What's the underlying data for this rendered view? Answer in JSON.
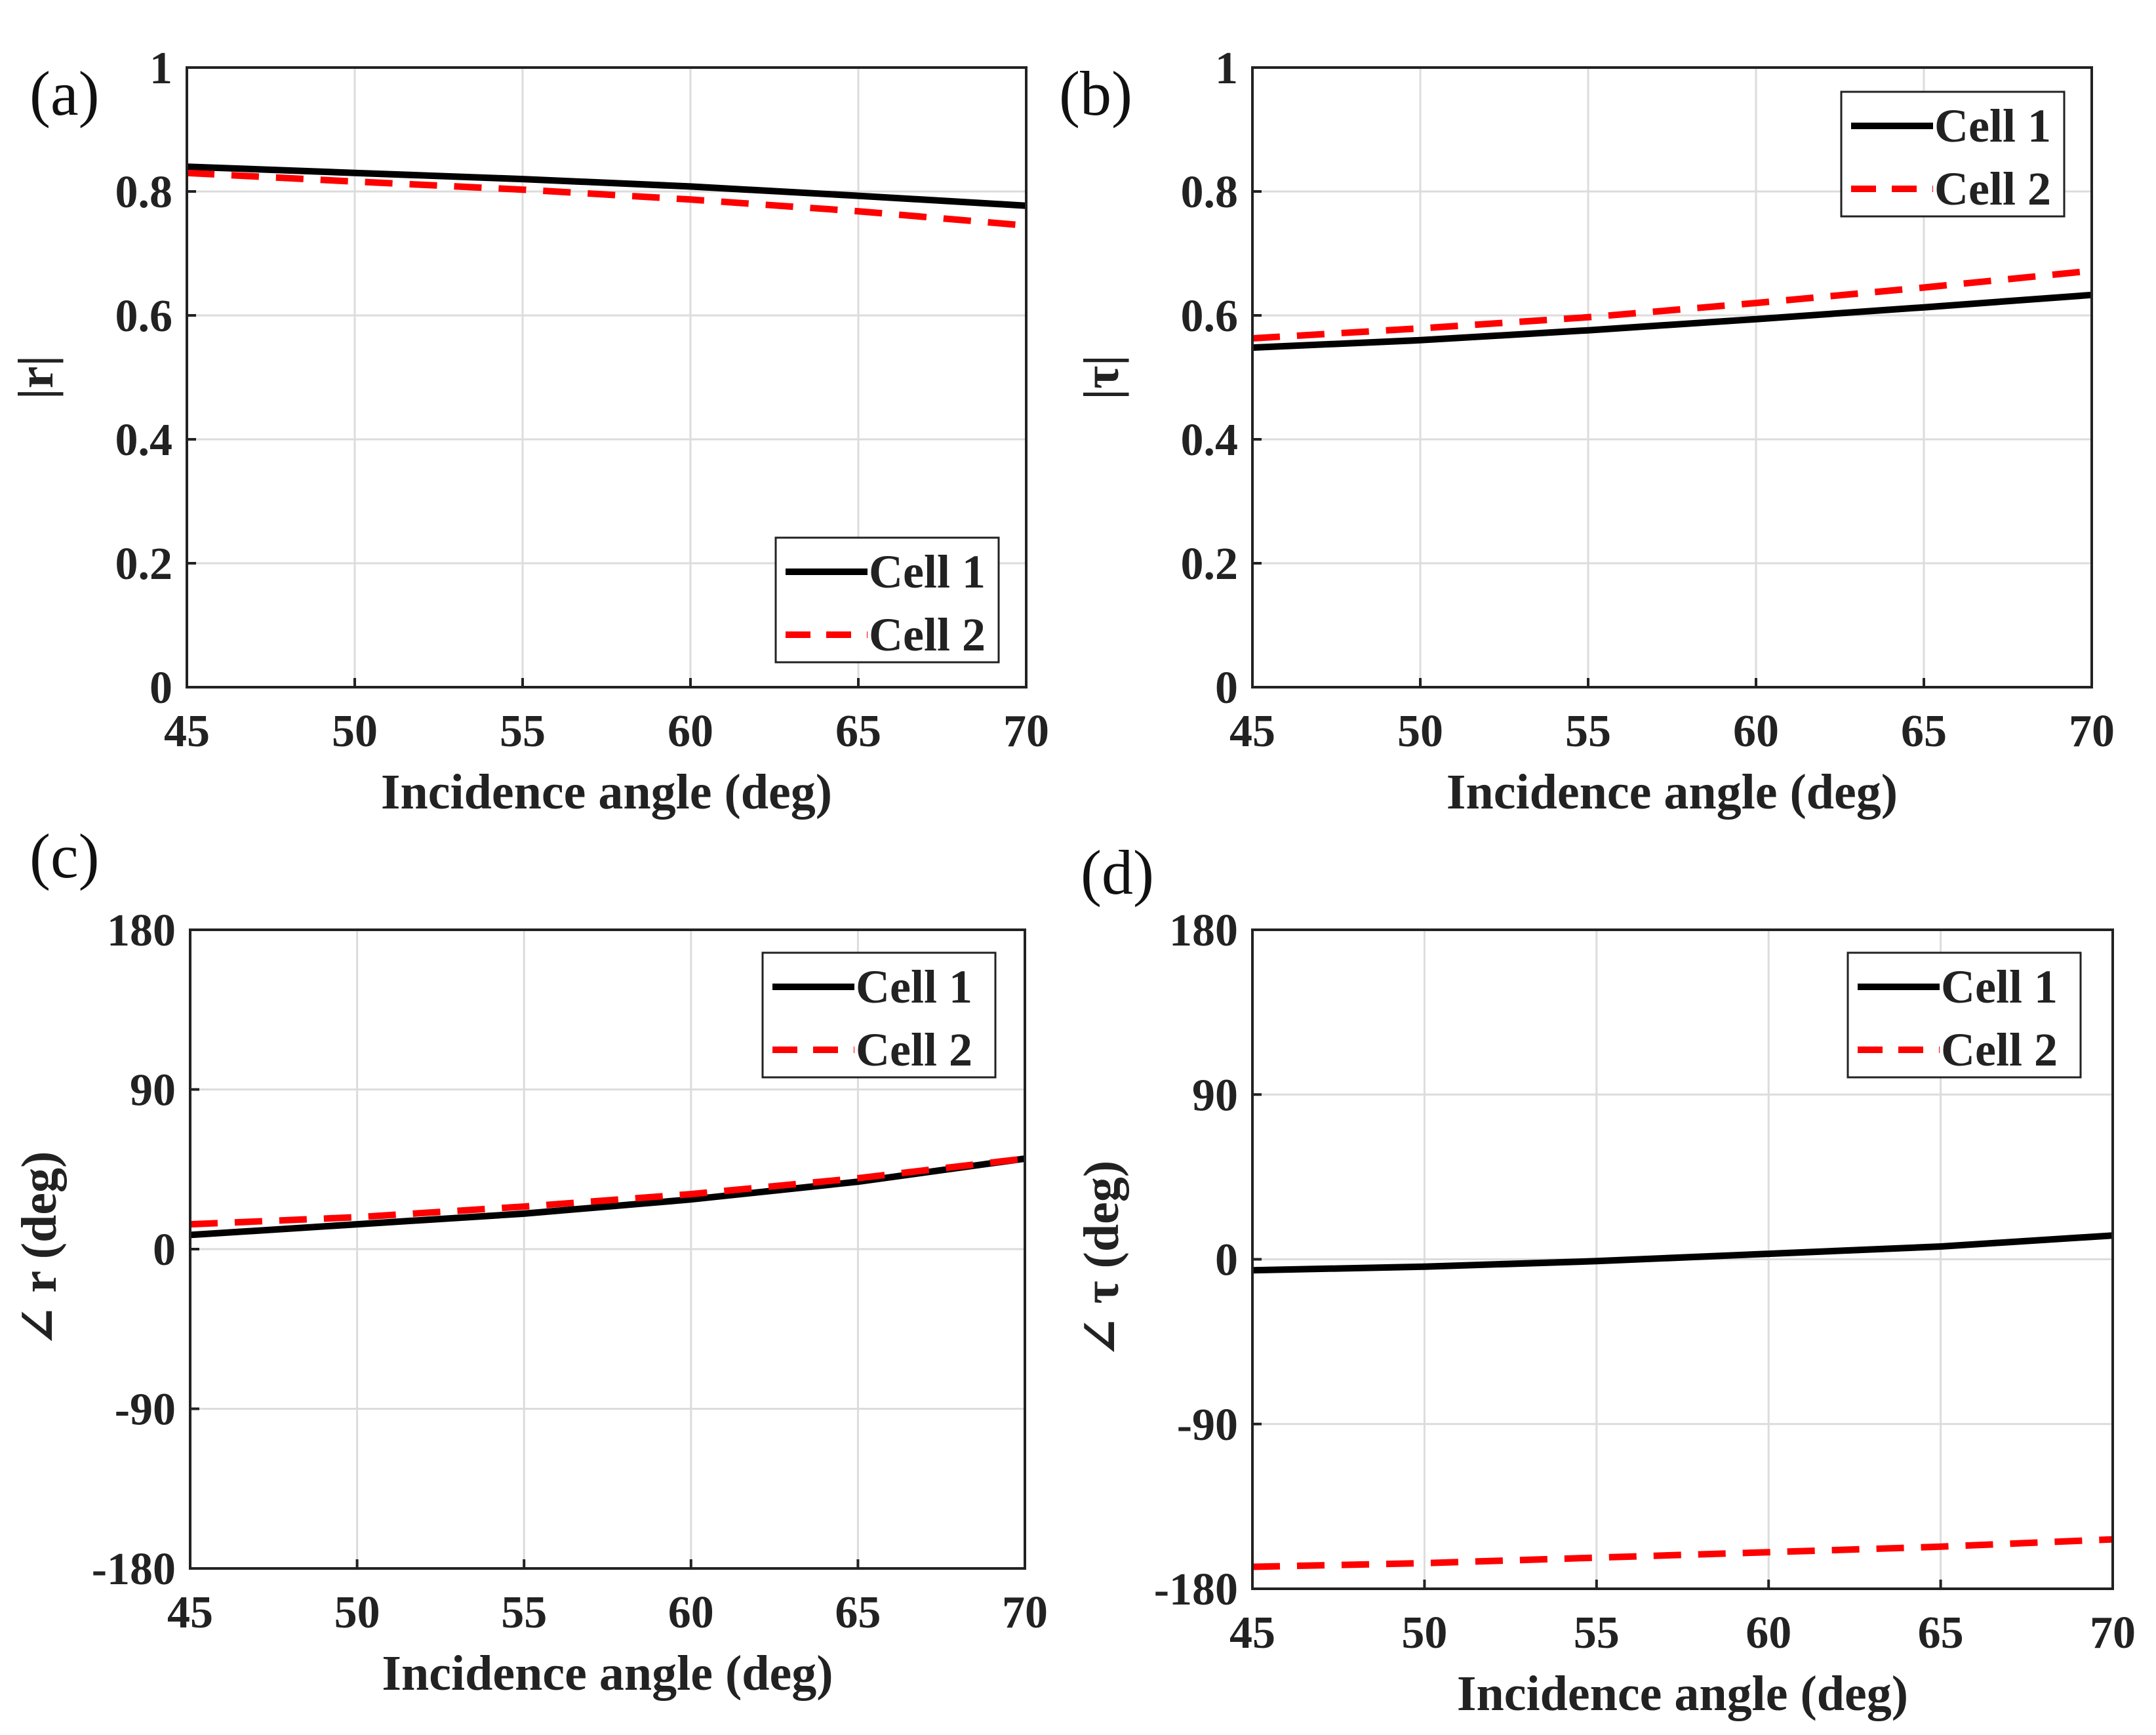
{
  "chart_data": [
    {
      "id": "a",
      "panel_label": "(a)",
      "type": "line",
      "xlabel": "Incidence angle (deg)",
      "ylabel": "|r|",
      "xlim": [
        45,
        70
      ],
      "ylim": [
        0,
        1
      ],
      "xticks": [
        "45",
        "50",
        "55",
        "60",
        "65",
        "70"
      ],
      "yticks": [
        "0",
        "0.2",
        "0.4",
        "0.6",
        "0.8",
        "1"
      ],
      "grid": true,
      "legend_position": "bottom-right",
      "x": [
        45,
        50,
        55,
        60,
        65,
        70
      ],
      "series": [
        {
          "name": "Cell 1",
          "color": "#000000",
          "style": "solid",
          "values": [
            0.84,
            0.83,
            0.82,
            0.808,
            0.793,
            0.777
          ]
        },
        {
          "name": "Cell 2",
          "color": "#ff0000",
          "style": "dashed",
          "values": [
            0.83,
            0.816,
            0.803,
            0.787,
            0.768,
            0.745
          ]
        }
      ]
    },
    {
      "id": "b",
      "panel_label": "(b)",
      "type": "line",
      "xlabel": "Incidence angle (deg)",
      "ylabel": "|τ|",
      "xlim": [
        45,
        70
      ],
      "ylim": [
        0,
        1
      ],
      "xticks": [
        "45",
        "50",
        "55",
        "60",
        "65",
        "70"
      ],
      "yticks": [
        "0",
        "0.2",
        "0.4",
        "0.6",
        "0.8",
        "1"
      ],
      "grid": true,
      "legend_position": "top-right",
      "x": [
        45,
        50,
        55,
        60,
        65,
        70
      ],
      "series": [
        {
          "name": "Cell 1",
          "color": "#000000",
          "style": "solid",
          "values": [
            0.548,
            0.56,
            0.576,
            0.594,
            0.613,
            0.633
          ]
        },
        {
          "name": "Cell 2",
          "color": "#ff0000",
          "style": "dashed",
          "values": [
            0.563,
            0.579,
            0.597,
            0.62,
            0.645,
            0.672
          ]
        }
      ]
    },
    {
      "id": "c",
      "panel_label": "(c)",
      "type": "line",
      "xlabel": "Incidence angle (deg)",
      "ylabel": "∠ r (deg)",
      "xlim": [
        45,
        70
      ],
      "ylim": [
        -180,
        180
      ],
      "xticks": [
        "45",
        "50",
        "55",
        "60",
        "65",
        "70"
      ],
      "yticks": [
        "-180",
        "-90",
        "0",
        "90",
        "180"
      ],
      "grid": true,
      "legend_position": "top-right",
      "x": [
        45,
        50,
        55,
        60,
        65,
        70
      ],
      "series": [
        {
          "name": "Cell 1",
          "color": "#000000",
          "style": "solid",
          "values": [
            8,
            14,
            20,
            28,
            38,
            51
          ]
        },
        {
          "name": "Cell 2",
          "color": "#ff0000",
          "style": "dashed",
          "values": [
            14,
            18,
            24,
            31,
            40,
            51
          ]
        }
      ]
    },
    {
      "id": "d",
      "panel_label": "(d)",
      "type": "line",
      "xlabel": "Incidence angle (deg)",
      "ylabel": "∠ τ (deg)",
      "xlim": [
        45,
        70
      ],
      "ylim": [
        -180,
        180
      ],
      "xticks": [
        "45",
        "50",
        "55",
        "60",
        "65",
        "70"
      ],
      "yticks": [
        "-180",
        "-90",
        "0",
        "90",
        "180"
      ],
      "grid": true,
      "legend_position": "top-right",
      "x": [
        45,
        50,
        55,
        60,
        65,
        70
      ],
      "series": [
        {
          "name": "Cell 1",
          "color": "#000000",
          "style": "solid",
          "values": [
            -6,
            -4,
            -1,
            3,
            7,
            13
          ]
        },
        {
          "name": "Cell 2",
          "color": "#ff0000",
          "style": "dashed",
          "values": [
            -168,
            -166,
            -163,
            -160,
            -157,
            -153
          ]
        }
      ]
    }
  ]
}
